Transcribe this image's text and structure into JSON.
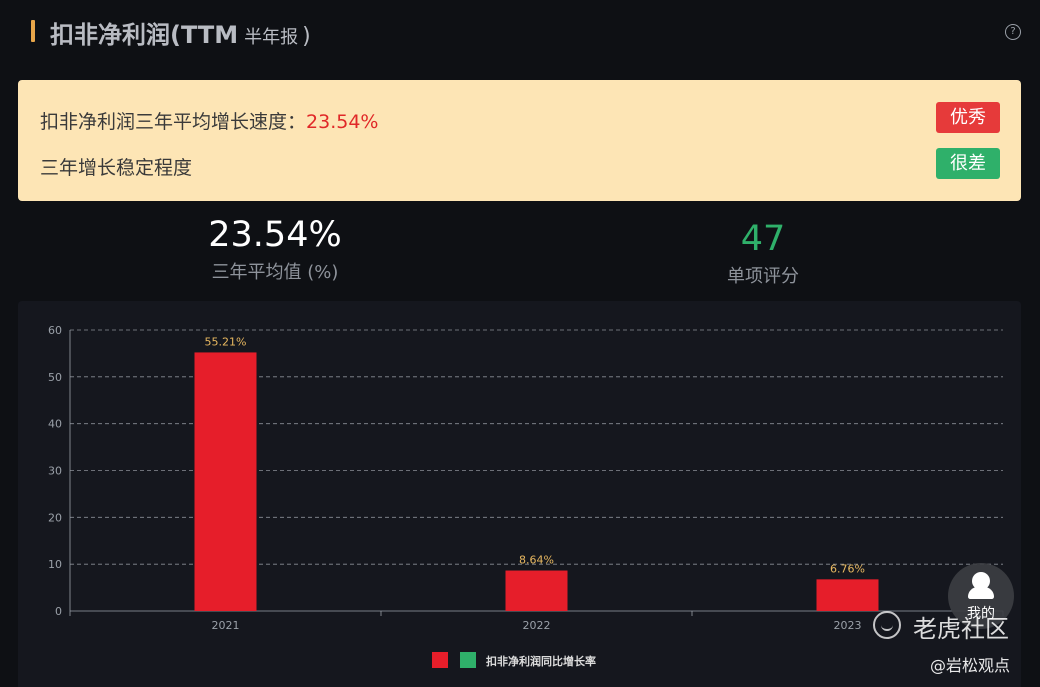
{
  "header": {
    "title": "扣非净利润(TTM",
    "period": "半年报",
    "close_paren": ")",
    "help_icon": "question-circle-icon"
  },
  "summary": {
    "growth_label": "扣非净利润三年平均增长速度：",
    "growth_value": "23.54%",
    "growth_badge": "优秀",
    "stability_label": "三年增长稳定程度",
    "stability_badge": "很差",
    "colors": {
      "badge_good": "#e63a3a",
      "badge_bad": "#2fb06a",
      "panel_bg": "#fde5b5"
    }
  },
  "stats": {
    "avg_value": "23.54%",
    "avg_label": "三年平均值 (%)",
    "score_value": "47",
    "score_label": "单项评分"
  },
  "chart_data": {
    "type": "bar",
    "categories": [
      "2021",
      "2022",
      "2023"
    ],
    "series": [
      {
        "name": "扣非净利润同比增长率",
        "values": [
          55.21,
          8.64,
          6.76
        ],
        "color": "#e61e2a"
      }
    ],
    "data_labels": [
      "55.21%",
      "8.64%",
      "6.76%"
    ],
    "ylim": [
      0,
      60
    ],
    "yticks": [
      "0",
      "10",
      "20",
      "30",
      "40",
      "50",
      "60"
    ],
    "grid": true,
    "legend": "bottom-center",
    "legend_swatches": [
      "#e61e2a",
      "#2fb06a"
    ]
  },
  "widgets": {
    "user_label": "我的",
    "user_icon": "user-icon",
    "watermark_text": "老虎社区",
    "watermark_handle": "@岩松观点",
    "watermark_icon": "tiger-logo-icon"
  }
}
